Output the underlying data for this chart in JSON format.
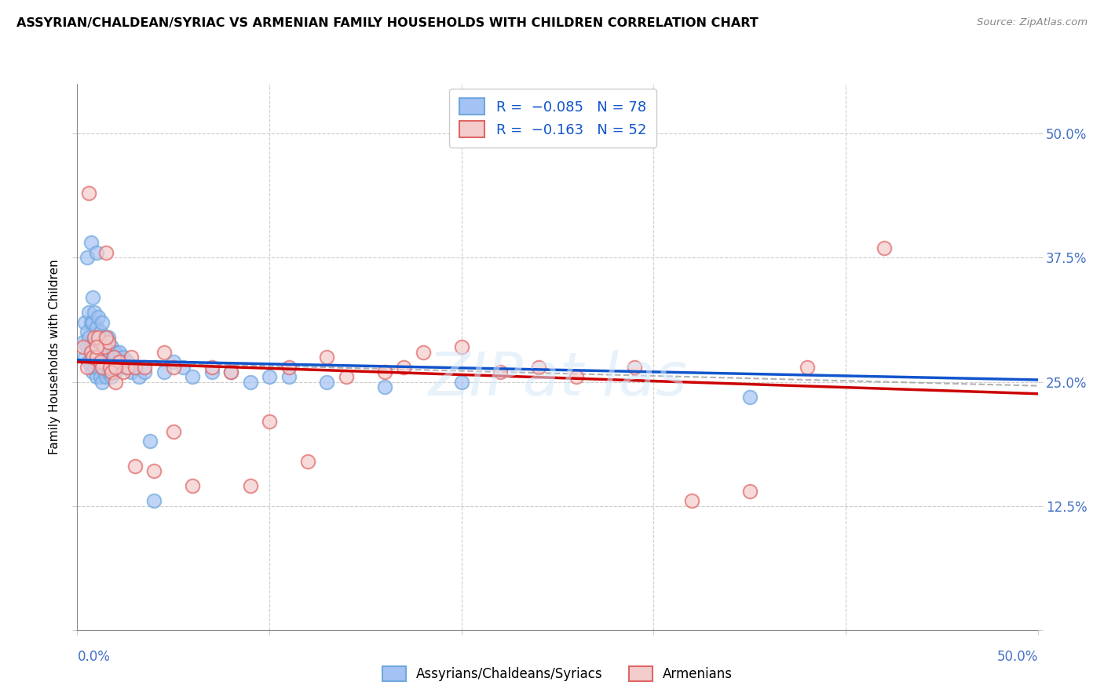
{
  "title": "ASSYRIAN/CHALDEAN/SYRIAC VS ARMENIAN FAMILY HOUSEHOLDS WITH CHILDREN CORRELATION CHART",
  "source": "Source: ZipAtlas.com",
  "ylabel": "Family Households with Children",
  "legend_label1": "Assyrians/Chaldeans/Syriacs",
  "legend_label2": "Armenians",
  "blue_color": "#a4c2f4",
  "blue_edge": "#6fa8dc",
  "pink_color": "#f4cccc",
  "pink_edge": "#e06666",
  "trend_blue": "#1155cc",
  "trend_pink": "#cc0000",
  "trend_gray": "#aaaaaa",
  "xlim": [
    0.0,
    0.5
  ],
  "ylim": [
    0.0,
    0.55
  ],
  "yticks": [
    0.0,
    0.125,
    0.25,
    0.375,
    0.5
  ],
  "ytick_labels": [
    "",
    "12.5%",
    "25.0%",
    "37.5%",
    "50.0%"
  ],
  "xticks": [
    0.0,
    0.1,
    0.2,
    0.3,
    0.4,
    0.5
  ],
  "blue_x": [
    0.003,
    0.004,
    0.004,
    0.005,
    0.005,
    0.005,
    0.006,
    0.006,
    0.006,
    0.007,
    0.007,
    0.007,
    0.007,
    0.008,
    0.008,
    0.008,
    0.008,
    0.009,
    0.009,
    0.009,
    0.01,
    0.01,
    0.01,
    0.01,
    0.011,
    0.011,
    0.011,
    0.012,
    0.012,
    0.012,
    0.013,
    0.013,
    0.013,
    0.013,
    0.014,
    0.014,
    0.014,
    0.015,
    0.015,
    0.015,
    0.016,
    0.016,
    0.016,
    0.017,
    0.017,
    0.018,
    0.018,
    0.018,
    0.019,
    0.019,
    0.02,
    0.02,
    0.021,
    0.022,
    0.022,
    0.023,
    0.024,
    0.025,
    0.026,
    0.028,
    0.03,
    0.032,
    0.035,
    0.038,
    0.04,
    0.045,
    0.05,
    0.055,
    0.06,
    0.07,
    0.08,
    0.09,
    0.1,
    0.11,
    0.13,
    0.16,
    0.2,
    0.35
  ],
  "blue_y": [
    0.29,
    0.275,
    0.31,
    0.285,
    0.3,
    0.375,
    0.27,
    0.295,
    0.32,
    0.265,
    0.285,
    0.31,
    0.39,
    0.26,
    0.28,
    0.31,
    0.335,
    0.265,
    0.285,
    0.32,
    0.255,
    0.275,
    0.305,
    0.38,
    0.265,
    0.285,
    0.315,
    0.255,
    0.275,
    0.3,
    0.25,
    0.27,
    0.285,
    0.31,
    0.26,
    0.275,
    0.295,
    0.255,
    0.275,
    0.295,
    0.26,
    0.275,
    0.295,
    0.26,
    0.28,
    0.255,
    0.27,
    0.285,
    0.26,
    0.28,
    0.26,
    0.28,
    0.27,
    0.265,
    0.28,
    0.27,
    0.275,
    0.265,
    0.27,
    0.26,
    0.265,
    0.255,
    0.26,
    0.19,
    0.13,
    0.26,
    0.27,
    0.265,
    0.255,
    0.26,
    0.26,
    0.25,
    0.255,
    0.255,
    0.25,
    0.245,
    0.25,
    0.235
  ],
  "pink_x": [
    0.003,
    0.005,
    0.006,
    0.007,
    0.008,
    0.009,
    0.01,
    0.011,
    0.012,
    0.013,
    0.014,
    0.015,
    0.016,
    0.017,
    0.018,
    0.019,
    0.02,
    0.022,
    0.024,
    0.026,
    0.028,
    0.03,
    0.035,
    0.04,
    0.045,
    0.05,
    0.06,
    0.07,
    0.08,
    0.09,
    0.1,
    0.11,
    0.12,
    0.13,
    0.14,
    0.16,
    0.17,
    0.18,
    0.2,
    0.22,
    0.24,
    0.26,
    0.29,
    0.32,
    0.35,
    0.38,
    0.01,
    0.015,
    0.02,
    0.03,
    0.05,
    0.42
  ],
  "pink_y": [
    0.285,
    0.265,
    0.44,
    0.28,
    0.275,
    0.295,
    0.275,
    0.295,
    0.27,
    0.265,
    0.285,
    0.38,
    0.29,
    0.265,
    0.26,
    0.275,
    0.25,
    0.27,
    0.26,
    0.265,
    0.275,
    0.265,
    0.265,
    0.16,
    0.28,
    0.2,
    0.145,
    0.265,
    0.26,
    0.145,
    0.21,
    0.265,
    0.17,
    0.275,
    0.255,
    0.26,
    0.265,
    0.28,
    0.285,
    0.26,
    0.265,
    0.255,
    0.265,
    0.13,
    0.14,
    0.265,
    0.285,
    0.295,
    0.265,
    0.165,
    0.265,
    0.385
  ]
}
